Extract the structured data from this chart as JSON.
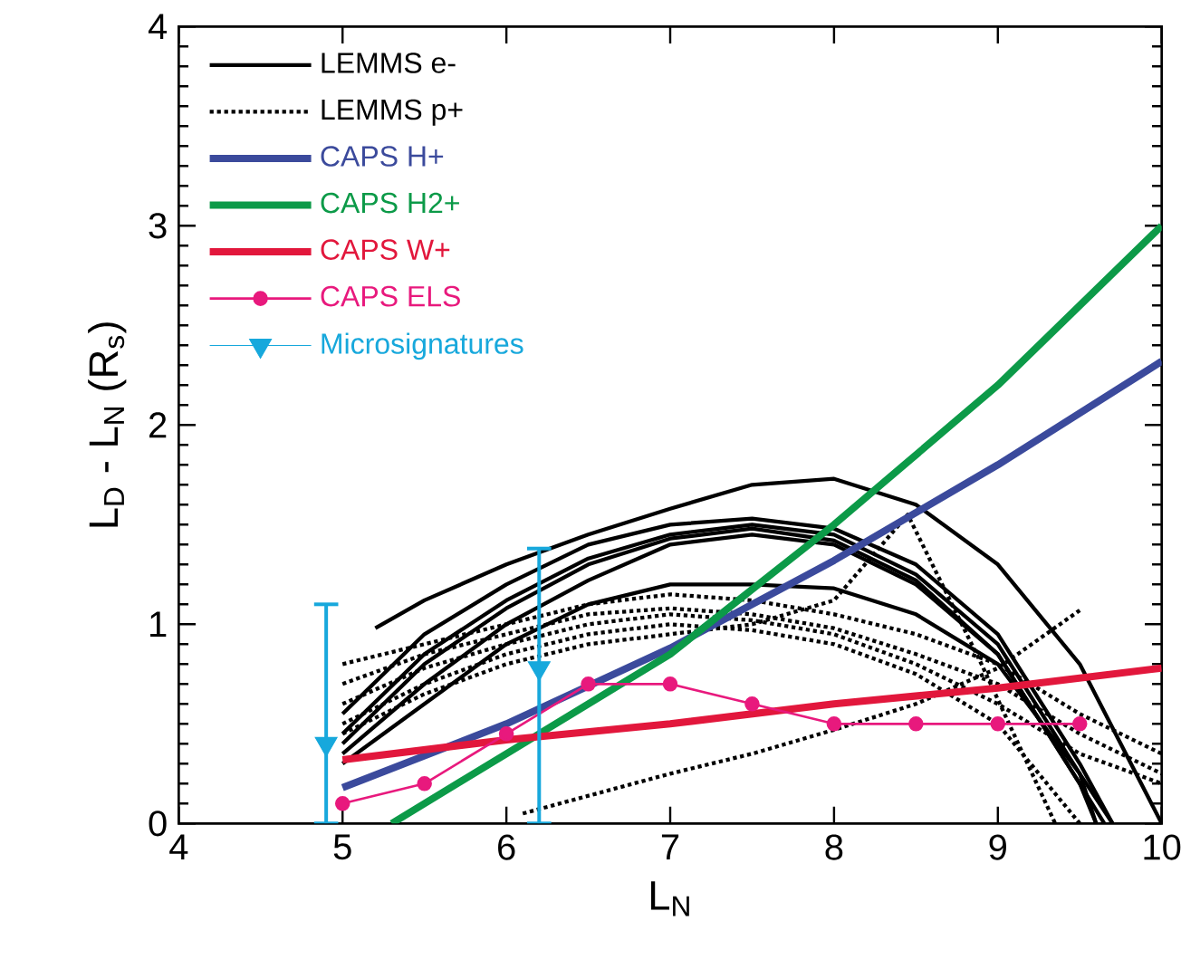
{
  "chart_data": {
    "type": "line",
    "xlabel": "L$_{N}$",
    "ylabel": "L$_{D}$ - L$_{N}$ (R$_{s}$)",
    "xlim": [
      4,
      10
    ],
    "ylim": [
      0,
      4
    ],
    "xticks": [
      4,
      5,
      6,
      7,
      8,
      9,
      10
    ],
    "yticks": [
      0,
      1,
      2,
      3,
      4
    ],
    "legend": "top left",
    "series": [
      {
        "name": "LEMMS e-",
        "color": "#000000",
        "line_style": "solid",
        "x": [
          5.2,
          5.5,
          6,
          6.5,
          7,
          7.5,
          8,
          8.5,
          9,
          9.5,
          10
        ],
        "values": [
          0.98,
          1.12,
          1.3,
          1.45,
          1.58,
          1.7,
          1.73,
          1.6,
          1.3,
          0.8,
          0.0
        ]
      },
      {
        "color": "#000000",
        "line_style": "solid",
        "x": [
          5,
          5.5,
          6,
          6.5,
          7,
          7.5,
          8,
          8.5,
          9,
          9.5,
          9.7
        ],
        "values": [
          0.55,
          0.95,
          1.2,
          1.4,
          1.5,
          1.53,
          1.48,
          1.3,
          0.95,
          0.3,
          0.0
        ]
      },
      {
        "color": "#000000",
        "line_style": "solid",
        "x": [
          5,
          5.5,
          6,
          6.5,
          7,
          7.5,
          8,
          8.5,
          9,
          9.5,
          9.7
        ],
        "values": [
          0.45,
          0.85,
          1.12,
          1.33,
          1.45,
          1.5,
          1.45,
          1.25,
          0.9,
          0.25,
          0.0
        ]
      },
      {
        "color": "#000000",
        "line_style": "solid",
        "x": [
          5,
          5.5,
          6,
          6.5,
          7,
          7.5,
          8,
          8.5,
          9,
          9.5,
          9.65
        ],
        "values": [
          0.4,
          0.8,
          1.08,
          1.3,
          1.43,
          1.48,
          1.42,
          1.22,
          0.85,
          0.2,
          0.0
        ]
      },
      {
        "color": "#000000",
        "line_style": "solid",
        "x": [
          5,
          5.5,
          6,
          6.5,
          7,
          7.5,
          8,
          8.5,
          9,
          9.5,
          9.6
        ],
        "values": [
          0.35,
          0.7,
          1.0,
          1.22,
          1.4,
          1.45,
          1.4,
          1.2,
          0.85,
          0.2,
          0.0
        ]
      },
      {
        "color": "#000000",
        "line_style": "solid",
        "x": [
          5,
          5.5,
          6,
          6.5,
          7,
          7.5,
          8,
          8.5,
          9,
          9.5,
          9.6
        ],
        "values": [
          0.3,
          0.6,
          0.9,
          1.1,
          1.2,
          1.2,
          1.18,
          1.05,
          0.8,
          0.25,
          0.0
        ]
      },
      {
        "name": "LEMMS p+",
        "color": "#000000",
        "line_style": "dotted",
        "x": [
          5,
          5.5,
          6,
          6.5,
          7,
          7.5,
          8,
          8.5,
          9,
          9.5,
          10
        ],
        "values": [
          0.8,
          0.9,
          1.0,
          1.1,
          1.15,
          1.12,
          1.05,
          0.95,
          0.8,
          0.55,
          0.35
        ]
      },
      {
        "color": "#000000",
        "line_style": "dotted",
        "x": [
          5,
          5.5,
          6,
          6.5,
          7,
          7.5,
          8,
          8.5,
          9,
          9.5,
          10
        ],
        "values": [
          0.7,
          0.85,
          0.95,
          1.05,
          1.08,
          1.05,
          0.98,
          0.85,
          0.7,
          0.45,
          0.25
        ]
      },
      {
        "color": "#000000",
        "line_style": "dotted",
        "x": [
          5,
          5.5,
          6,
          6.5,
          7,
          7.5,
          8,
          8.5,
          9,
          9.5,
          10
        ],
        "values": [
          0.6,
          0.78,
          0.9,
          1.0,
          1.05,
          1.02,
          0.95,
          0.8,
          0.6,
          0.35,
          0.2
        ]
      },
      {
        "color": "#000000",
        "line_style": "dotted",
        "x": [
          5,
          5.5,
          6,
          6.5,
          7,
          7.5,
          8,
          8.5,
          9,
          9.3,
          9.5
        ],
        "values": [
          0.5,
          0.7,
          0.85,
          0.95,
          1.0,
          0.97,
          0.9,
          0.75,
          0.5,
          0.2,
          0.0
        ]
      },
      {
        "color": "#000000",
        "line_style": "dotted",
        "x": [
          5,
          5.5,
          6,
          6.5,
          7,
          7.5,
          8,
          8.45,
          8.9,
          9.35
        ],
        "values": [
          0.45,
          0.65,
          0.8,
          0.9,
          0.95,
          1.0,
          1.12,
          1.55,
          0.8,
          0.0
        ]
      },
      {
        "color": "#000000",
        "line_style": "dotted",
        "x": [
          6.1,
          7,
          7.5,
          8,
          8.5,
          9,
          9.5
        ],
        "values": [
          0.05,
          0.25,
          0.35,
          0.47,
          0.6,
          0.78,
          1.07
        ]
      },
      {
        "name": "CAPS H+",
        "color": "#3b4a9c",
        "line_style": "solid",
        "x": [
          5,
          6,
          7,
          8,
          9,
          10
        ],
        "values": [
          0.18,
          0.5,
          0.88,
          1.32,
          1.8,
          2.32
        ]
      },
      {
        "name": "CAPS H2+",
        "color": "#0c9a48",
        "line_style": "solid",
        "x": [
          5.3,
          6,
          7,
          8,
          9,
          10
        ],
        "values": [
          0.0,
          0.35,
          0.85,
          1.5,
          2.2,
          3.0
        ]
      },
      {
        "name": "CAPS W+",
        "color": "#e2173c",
        "line_style": "solid",
        "x": [
          5,
          6,
          7,
          8,
          9,
          10
        ],
        "values": [
          0.32,
          0.42,
          0.5,
          0.6,
          0.68,
          0.78
        ]
      },
      {
        "name": "CAPS ELS",
        "color": "#e8197d",
        "line_style": "solid",
        "marker": "circle",
        "x": [
          5,
          5.5,
          6,
          6.5,
          7,
          7.5,
          8,
          8.5,
          9,
          9.5
        ],
        "values": [
          0.1,
          0.2,
          0.45,
          0.7,
          0.7,
          0.6,
          0.5,
          0.5,
          0.5,
          0.5
        ]
      },
      {
        "name": "Microsignatures",
        "type": "scatter",
        "color": "#17a8dc",
        "marker": "triangle",
        "x": [
          4.9,
          6.2
        ],
        "values": [
          0.4,
          0.78
        ],
        "errors": [
          [
            0,
            1.1
          ],
          [
            0,
            1.38
          ]
        ]
      }
    ]
  }
}
